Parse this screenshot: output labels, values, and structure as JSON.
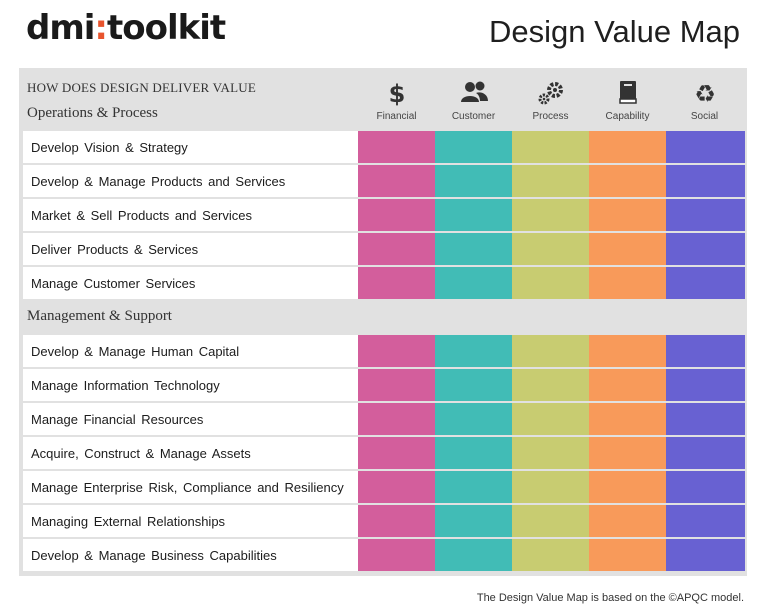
{
  "logo": {
    "left": "dmi",
    "colon": ":",
    "right": "toolkit"
  },
  "title": "Design Value Map",
  "header_question": "HOW DOES DESIGN DELIVER VALUE",
  "columns": [
    {
      "label": "Financial",
      "icon": "dollar-icon",
      "color": "#d35e9c"
    },
    {
      "label": "Customer",
      "icon": "people-icon",
      "color": "#41bcb6"
    },
    {
      "label": "Process",
      "icon": "gears-icon",
      "color": "#c8cc71"
    },
    {
      "label": "Capability",
      "icon": "book-icon",
      "color": "#f89a5a"
    },
    {
      "label": "Social",
      "icon": "recycle-icon",
      "color": "#6861d2"
    }
  ],
  "sections": [
    {
      "title": "Operations & Process",
      "rows": [
        "Develop Vision & Strategy",
        "Develop & Manage Products and Services",
        "Market & Sell Products and Services",
        "Deliver Products & Services",
        "Manage Customer Services"
      ]
    },
    {
      "title": "Management & Support",
      "rows": [
        "Develop & Manage Human Capital",
        "Manage Information Technology",
        "Manage Financial Resources",
        "Acquire, Construct & Manage Assets",
        "Manage Enterprise Risk, Compliance and Resiliency",
        "Managing External Relationships",
        "Develop & Manage Business Capabilities"
      ]
    }
  ],
  "footer": "The Design Value Map is based on the ©APQC model."
}
